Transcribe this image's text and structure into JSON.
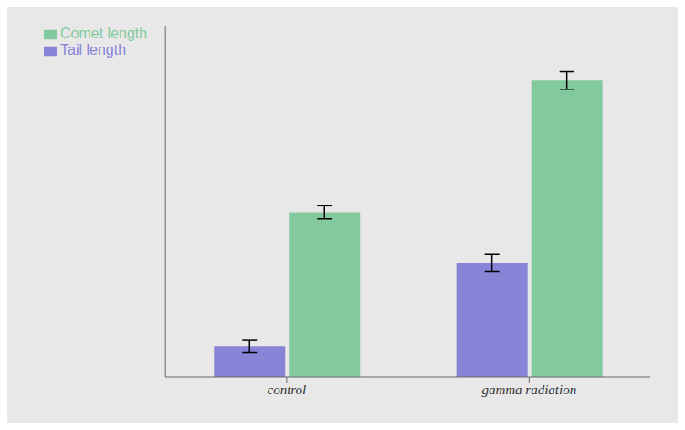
{
  "chart_data": {
    "type": "bar",
    "categories": [
      "control",
      "gamma radiation"
    ],
    "series": [
      {
        "name": "Tail length",
        "color": "#8884d8",
        "values": [
          14,
          52
        ],
        "error": [
          3.0,
          4.0
        ]
      },
      {
        "name": "Comet length",
        "color": "#82ca9d",
        "values": [
          75,
          135
        ],
        "error": [
          3.0,
          4.0
        ]
      }
    ],
    "ylim": [
      0,
      160
    ],
    "legend": "upper left",
    "grid": false,
    "tick_labels": "x"
  }
}
